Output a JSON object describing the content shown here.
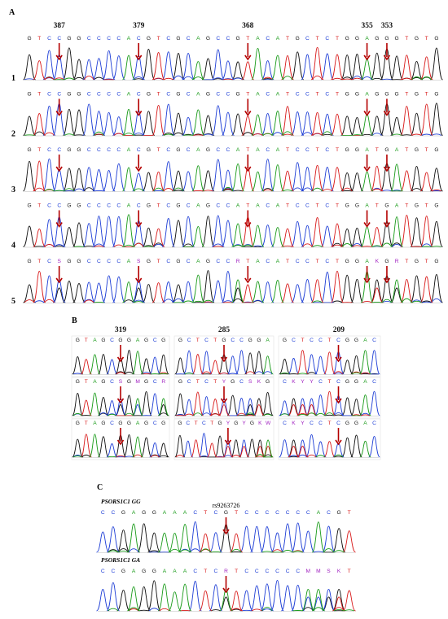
{
  "colors": {
    "A": "#1a9b1a",
    "C": "#1f3fd6",
    "G": "#111111",
    "T": "#d81b1b",
    "ambiguous": "#a020c0",
    "arrow": "#b40000"
  },
  "panel_a": {
    "label": "A",
    "positions": [
      {
        "text": "387",
        "col": 3
      },
      {
        "text": "379",
        "col": 11
      },
      {
        "text": "368",
        "col": 22
      },
      {
        "text": "355",
        "col": 34
      },
      {
        "text": "353",
        "col": 36
      }
    ],
    "rows": [
      {
        "num": "1",
        "seq": "GTCCGGCCCCACGTCGCAGCCGTACATGCTCTGGAGGGTGTG"
      },
      {
        "num": "2",
        "seq": "GTCCGGCCCCACGTCGCAGCCGTACATCCTCTGGAGGGTGTG"
      },
      {
        "num": "3",
        "seq": "GTCCGGCCCCACGTCGCAGCCATACATCCTCTGGATGATGTG"
      },
      {
        "num": "4",
        "seq": "GTCCGGCCCCACGTCGCAGCCATACATCCTCTGGATGATGTG"
      },
      {
        "num": "5",
        "seq": "GTCSGGCCCCASGTCGCAGCCRTACATCCTCTGGAKGRTGTG"
      }
    ]
  },
  "panel_b": {
    "label": "B",
    "columns": [
      {
        "position": "319",
        "seqs": [
          "GTAGCGGAGCG",
          "GTAGCSGMGCR",
          "GTAGCGGAGCG"
        ],
        "arrow": 5
      },
      {
        "position": "285",
        "seqs": [
          "GCTCTGCCGGA",
          "GCTCTYGCSKG",
          "GCTCTGYGYGKW"
        ],
        "arrow": 5
      },
      {
        "position": "209",
        "seqs": [
          "GCTCCTCGGAC",
          "CKYYCTCGGAC",
          "CKYCCTCGGAC"
        ],
        "arrow": 6
      }
    ]
  },
  "panel_c": {
    "label": "C",
    "snp": "rs9263726",
    "traces": [
      {
        "genotype": "PSORS1C1 GG",
        "seq": "CCGAGGAAACTCGTCCCCCCCACGT"
      },
      {
        "genotype": "PSORS1C1 GA",
        "seq": "CCGAGGAAACTCRTCCCCCCMMSKT"
      }
    ],
    "arrow": 12
  }
}
